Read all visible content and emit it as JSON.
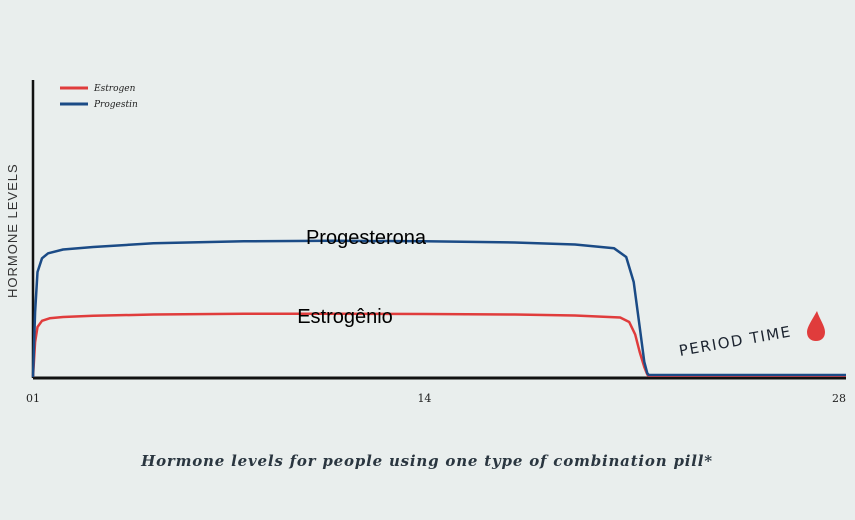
{
  "chart_data": {
    "type": "line",
    "title": "Hormone levels for people using one type of combination pill*",
    "xlabel": "",
    "ylabel": "HORMONE LEVELS",
    "x_ticks": [
      {
        "value": 1,
        "label": "01"
      },
      {
        "value": 14,
        "label": "14"
      },
      {
        "value": 28,
        "label": "28"
      }
    ],
    "xlim": [
      1,
      28
    ],
    "ylim": [
      0,
      100
    ],
    "grid": false,
    "legend_position": "top-left",
    "series": [
      {
        "name": "Estrogen",
        "color": "#e03c3c",
        "inline_label": "Estrogênio",
        "x": [
          1,
          1.07,
          1.15,
          1.3,
          1.55,
          2,
          3,
          5,
          8,
          11,
          14,
          17,
          19,
          20.5,
          20.8,
          21,
          21.15,
          21.3,
          21.4,
          21.45,
          28
        ],
        "y": [
          0,
          14,
          20,
          22.5,
          23.5,
          24,
          24.5,
          25,
          25.3,
          25.3,
          25.2,
          25,
          24.6,
          23.8,
          22,
          17,
          10,
          4,
          1,
          0.5,
          0.5
        ]
      },
      {
        "name": "Progestin",
        "color": "#1b4b86",
        "inline_label": "Progesterona",
        "x": [
          1,
          1.07,
          1.15,
          1.3,
          1.5,
          2,
          3,
          5,
          8,
          11,
          14,
          17,
          19,
          20.3,
          20.7,
          20.95,
          21.15,
          21.3,
          21.4,
          21.45,
          28
        ],
        "y": [
          0,
          26,
          42,
          47.5,
          49.5,
          51,
          52,
          53.5,
          54.3,
          54.5,
          54.3,
          53.8,
          53,
          51.5,
          48,
          38,
          20,
          6,
          1.5,
          0.8,
          0.8
        ]
      }
    ],
    "annotations": [
      {
        "text": "PERIOD TIME",
        "icon": "blood-drop-icon",
        "color": "#e03c3c"
      }
    ]
  }
}
